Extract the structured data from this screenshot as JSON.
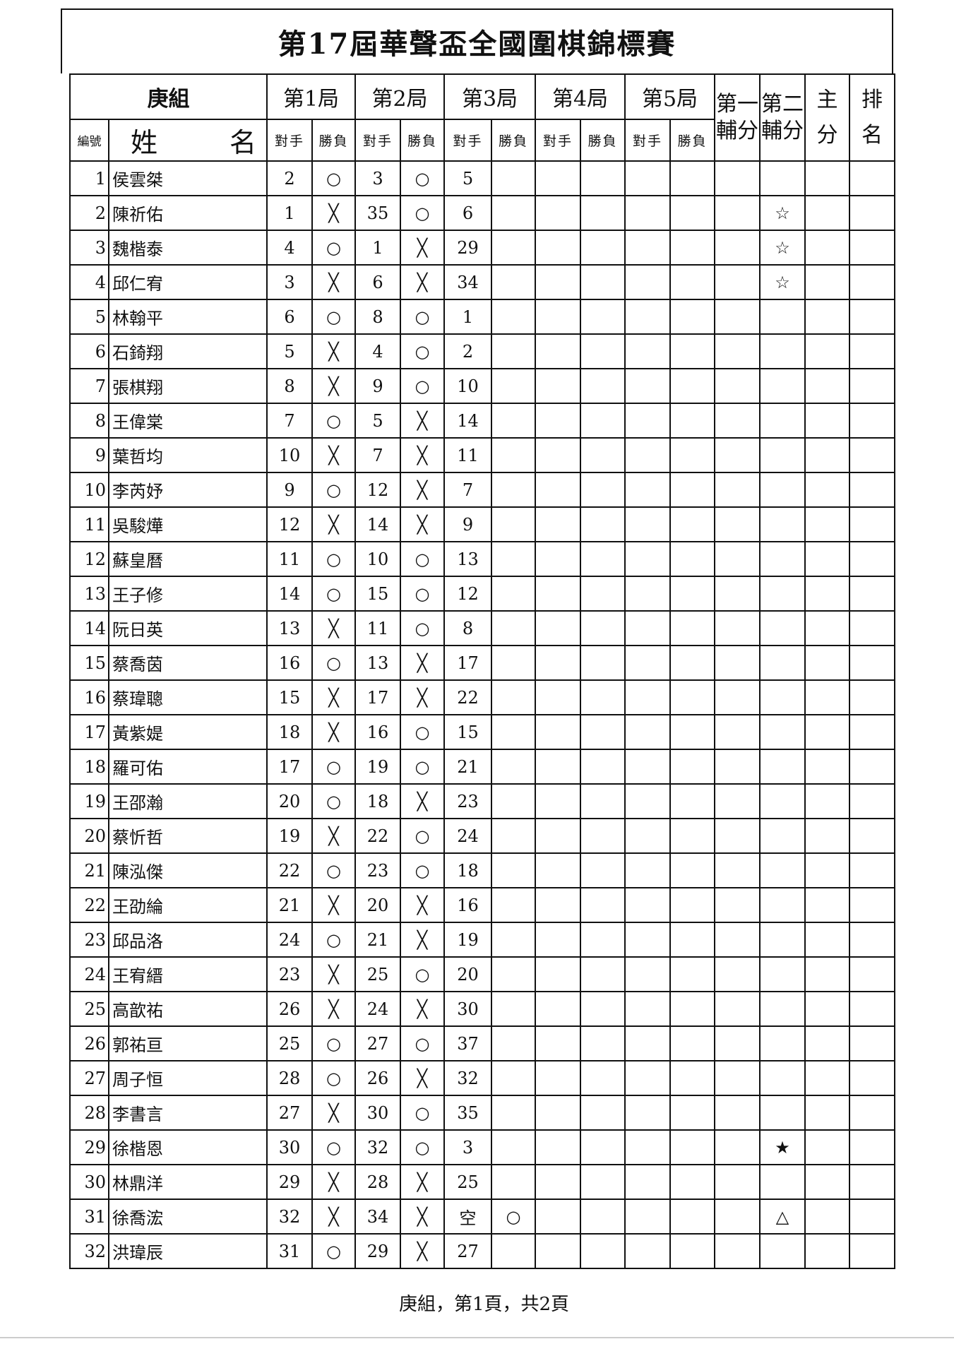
{
  "title": "第17屆華聲盃全國圍棋錦標賽",
  "header": {
    "group": "庚組",
    "rounds": [
      "第1局",
      "第2局",
      "第3局",
      "第4局",
      "第5局"
    ],
    "aux1": [
      "第一",
      "輔分"
    ],
    "aux2": [
      "第二",
      "輔分"
    ],
    "main": [
      "主",
      "分"
    ],
    "rank": [
      "排",
      "名"
    ],
    "no_label": "編號",
    "name_label": [
      "姓",
      "名"
    ],
    "opp_label": "對手",
    "res_label": "勝負"
  },
  "rows": [
    {
      "no": "1",
      "name": "侯雲桀",
      "r": [
        [
          "2",
          "○"
        ],
        [
          "3",
          "○"
        ],
        [
          "5",
          ""
        ],
        [
          "",
          ""
        ],
        [
          "",
          ""
        ]
      ],
      "aux1": "",
      "aux2": "",
      "main": "",
      "rank": ""
    },
    {
      "no": "2",
      "name": "陳祈佑",
      "r": [
        [
          "1",
          "╳"
        ],
        [
          "35",
          "○"
        ],
        [
          "6",
          ""
        ],
        [
          "",
          ""
        ],
        [
          "",
          ""
        ]
      ],
      "aux1": "",
      "aux2": "☆",
      "main": "",
      "rank": ""
    },
    {
      "no": "3",
      "name": "魏楷泰",
      "r": [
        [
          "4",
          "○"
        ],
        [
          "1",
          "╳"
        ],
        [
          "29",
          ""
        ],
        [
          "",
          ""
        ],
        [
          "",
          ""
        ]
      ],
      "aux1": "",
      "aux2": "☆",
      "main": "",
      "rank": ""
    },
    {
      "no": "4",
      "name": "邱仁宥",
      "r": [
        [
          "3",
          "╳"
        ],
        [
          "6",
          "╳"
        ],
        [
          "34",
          ""
        ],
        [
          "",
          ""
        ],
        [
          "",
          ""
        ]
      ],
      "aux1": "",
      "aux2": "☆",
      "main": "",
      "rank": ""
    },
    {
      "no": "5",
      "name": "林翰平",
      "r": [
        [
          "6",
          "○"
        ],
        [
          "8",
          "○"
        ],
        [
          "1",
          ""
        ],
        [
          "",
          ""
        ],
        [
          "",
          ""
        ]
      ],
      "aux1": "",
      "aux2": "",
      "main": "",
      "rank": ""
    },
    {
      "no": "6",
      "name": "石錡翔",
      "r": [
        [
          "5",
          "╳"
        ],
        [
          "4",
          "○"
        ],
        [
          "2",
          ""
        ],
        [
          "",
          ""
        ],
        [
          "",
          ""
        ]
      ],
      "aux1": "",
      "aux2": "",
      "main": "",
      "rank": ""
    },
    {
      "no": "7",
      "name": "張棋翔",
      "r": [
        [
          "8",
          "╳"
        ],
        [
          "9",
          "○"
        ],
        [
          "10",
          ""
        ],
        [
          "",
          ""
        ],
        [
          "",
          ""
        ]
      ],
      "aux1": "",
      "aux2": "",
      "main": "",
      "rank": ""
    },
    {
      "no": "8",
      "name": "王偉棠",
      "r": [
        [
          "7",
          "○"
        ],
        [
          "5",
          "╳"
        ],
        [
          "14",
          ""
        ],
        [
          "",
          ""
        ],
        [
          "",
          ""
        ]
      ],
      "aux1": "",
      "aux2": "",
      "main": "",
      "rank": ""
    },
    {
      "no": "9",
      "name": "葉哲均",
      "r": [
        [
          "10",
          "╳"
        ],
        [
          "7",
          "╳"
        ],
        [
          "11",
          ""
        ],
        [
          "",
          ""
        ],
        [
          "",
          ""
        ]
      ],
      "aux1": "",
      "aux2": "",
      "main": "",
      "rank": ""
    },
    {
      "no": "10",
      "name": "李芮妤",
      "r": [
        [
          "9",
          "○"
        ],
        [
          "12",
          "╳"
        ],
        [
          "7",
          ""
        ],
        [
          "",
          ""
        ],
        [
          "",
          ""
        ]
      ],
      "aux1": "",
      "aux2": "",
      "main": "",
      "rank": ""
    },
    {
      "no": "11",
      "name": "吳駿燁",
      "r": [
        [
          "12",
          "╳"
        ],
        [
          "14",
          "╳"
        ],
        [
          "9",
          ""
        ],
        [
          "",
          ""
        ],
        [
          "",
          ""
        ]
      ],
      "aux1": "",
      "aux2": "",
      "main": "",
      "rank": ""
    },
    {
      "no": "12",
      "name": "蘇皇曆",
      "r": [
        [
          "11",
          "○"
        ],
        [
          "10",
          "○"
        ],
        [
          "13",
          ""
        ],
        [
          "",
          ""
        ],
        [
          "",
          ""
        ]
      ],
      "aux1": "",
      "aux2": "",
      "main": "",
      "rank": ""
    },
    {
      "no": "13",
      "name": "王子修",
      "r": [
        [
          "14",
          "○"
        ],
        [
          "15",
          "○"
        ],
        [
          "12",
          ""
        ],
        [
          "",
          ""
        ],
        [
          "",
          ""
        ]
      ],
      "aux1": "",
      "aux2": "",
      "main": "",
      "rank": ""
    },
    {
      "no": "14",
      "name": "阮日英",
      "r": [
        [
          "13",
          "╳"
        ],
        [
          "11",
          "○"
        ],
        [
          "8",
          ""
        ],
        [
          "",
          ""
        ],
        [
          "",
          ""
        ]
      ],
      "aux1": "",
      "aux2": "",
      "main": "",
      "rank": ""
    },
    {
      "no": "15",
      "name": "蔡喬茵",
      "r": [
        [
          "16",
          "○"
        ],
        [
          "13",
          "╳"
        ],
        [
          "17",
          ""
        ],
        [
          "",
          ""
        ],
        [
          "",
          ""
        ]
      ],
      "aux1": "",
      "aux2": "",
      "main": "",
      "rank": ""
    },
    {
      "no": "16",
      "name": "蔡瑋聰",
      "r": [
        [
          "15",
          "╳"
        ],
        [
          "17",
          "╳"
        ],
        [
          "22",
          ""
        ],
        [
          "",
          ""
        ],
        [
          "",
          ""
        ]
      ],
      "aux1": "",
      "aux2": "",
      "main": "",
      "rank": ""
    },
    {
      "no": "17",
      "name": "黃紫媞",
      "r": [
        [
          "18",
          "╳"
        ],
        [
          "16",
          "○"
        ],
        [
          "15",
          ""
        ],
        [
          "",
          ""
        ],
        [
          "",
          ""
        ]
      ],
      "aux1": "",
      "aux2": "",
      "main": "",
      "rank": ""
    },
    {
      "no": "18",
      "name": "羅可佑",
      "r": [
        [
          "17",
          "○"
        ],
        [
          "19",
          "○"
        ],
        [
          "21",
          ""
        ],
        [
          "",
          ""
        ],
        [
          "",
          ""
        ]
      ],
      "aux1": "",
      "aux2": "",
      "main": "",
      "rank": ""
    },
    {
      "no": "19",
      "name": "王邵瀚",
      "r": [
        [
          "20",
          "○"
        ],
        [
          "18",
          "╳"
        ],
        [
          "23",
          ""
        ],
        [
          "",
          ""
        ],
        [
          "",
          ""
        ]
      ],
      "aux1": "",
      "aux2": "",
      "main": "",
      "rank": ""
    },
    {
      "no": "20",
      "name": "蔡忻哲",
      "r": [
        [
          "19",
          "╳"
        ],
        [
          "22",
          "○"
        ],
        [
          "24",
          ""
        ],
        [
          "",
          ""
        ],
        [
          "",
          ""
        ]
      ],
      "aux1": "",
      "aux2": "",
      "main": "",
      "rank": ""
    },
    {
      "no": "21",
      "name": "陳泓傑",
      "r": [
        [
          "22",
          "○"
        ],
        [
          "23",
          "○"
        ],
        [
          "18",
          ""
        ],
        [
          "",
          ""
        ],
        [
          "",
          ""
        ]
      ],
      "aux1": "",
      "aux2": "",
      "main": "",
      "rank": ""
    },
    {
      "no": "22",
      "name": "王劭綸",
      "r": [
        [
          "21",
          "╳"
        ],
        [
          "20",
          "╳"
        ],
        [
          "16",
          ""
        ],
        [
          "",
          ""
        ],
        [
          "",
          ""
        ]
      ],
      "aux1": "",
      "aux2": "",
      "main": "",
      "rank": ""
    },
    {
      "no": "23",
      "name": "邱品洛",
      "r": [
        [
          "24",
          "○"
        ],
        [
          "21",
          "╳"
        ],
        [
          "19",
          ""
        ],
        [
          "",
          ""
        ],
        [
          "",
          ""
        ]
      ],
      "aux1": "",
      "aux2": "",
      "main": "",
      "rank": ""
    },
    {
      "no": "24",
      "name": "王宥縉",
      "r": [
        [
          "23",
          "╳"
        ],
        [
          "25",
          "○"
        ],
        [
          "20",
          ""
        ],
        [
          "",
          ""
        ],
        [
          "",
          ""
        ]
      ],
      "aux1": "",
      "aux2": "",
      "main": "",
      "rank": ""
    },
    {
      "no": "25",
      "name": "高歆祐",
      "r": [
        [
          "26",
          "╳"
        ],
        [
          "24",
          "╳"
        ],
        [
          "30",
          ""
        ],
        [
          "",
          ""
        ],
        [
          "",
          ""
        ]
      ],
      "aux1": "",
      "aux2": "",
      "main": "",
      "rank": ""
    },
    {
      "no": "26",
      "name": "郭祐亘",
      "r": [
        [
          "25",
          "○"
        ],
        [
          "27",
          "○"
        ],
        [
          "37",
          ""
        ],
        [
          "",
          ""
        ],
        [
          "",
          ""
        ]
      ],
      "aux1": "",
      "aux2": "",
      "main": "",
      "rank": ""
    },
    {
      "no": "27",
      "name": "周子恒",
      "r": [
        [
          "28",
          "○"
        ],
        [
          "26",
          "╳"
        ],
        [
          "32",
          ""
        ],
        [
          "",
          ""
        ],
        [
          "",
          ""
        ]
      ],
      "aux1": "",
      "aux2": "",
      "main": "",
      "rank": ""
    },
    {
      "no": "28",
      "name": "李書言",
      "r": [
        [
          "27",
          "╳"
        ],
        [
          "30",
          "○"
        ],
        [
          "35",
          ""
        ],
        [
          "",
          ""
        ],
        [
          "",
          ""
        ]
      ],
      "aux1": "",
      "aux2": "",
      "main": "",
      "rank": ""
    },
    {
      "no": "29",
      "name": "徐楷恩",
      "r": [
        [
          "30",
          "○"
        ],
        [
          "32",
          "○"
        ],
        [
          "3",
          ""
        ],
        [
          "",
          ""
        ],
        [
          "",
          ""
        ]
      ],
      "aux1": "",
      "aux2": "★",
      "main": "",
      "rank": ""
    },
    {
      "no": "30",
      "name": "林鼎洋",
      "r": [
        [
          "29",
          "╳"
        ],
        [
          "28",
          "╳"
        ],
        [
          "25",
          ""
        ],
        [
          "",
          ""
        ],
        [
          "",
          ""
        ]
      ],
      "aux1": "",
      "aux2": "",
      "main": "",
      "rank": ""
    },
    {
      "no": "31",
      "name": "徐喬浤",
      "r": [
        [
          "32",
          "╳"
        ],
        [
          "34",
          "╳"
        ],
        [
          "空",
          "○"
        ],
        [
          "",
          ""
        ],
        [
          "",
          ""
        ]
      ],
      "aux1": "",
      "aux2": "△",
      "main": "",
      "rank": ""
    },
    {
      "no": "32",
      "name": "洪瑋辰",
      "r": [
        [
          "31",
          "○"
        ],
        [
          "29",
          "╳"
        ],
        [
          "27",
          ""
        ],
        [
          "",
          ""
        ],
        [
          "",
          ""
        ]
      ],
      "aux1": "",
      "aux2": "",
      "main": "",
      "rank": ""
    }
  ],
  "footer": "庚組，第1頁，共2頁"
}
